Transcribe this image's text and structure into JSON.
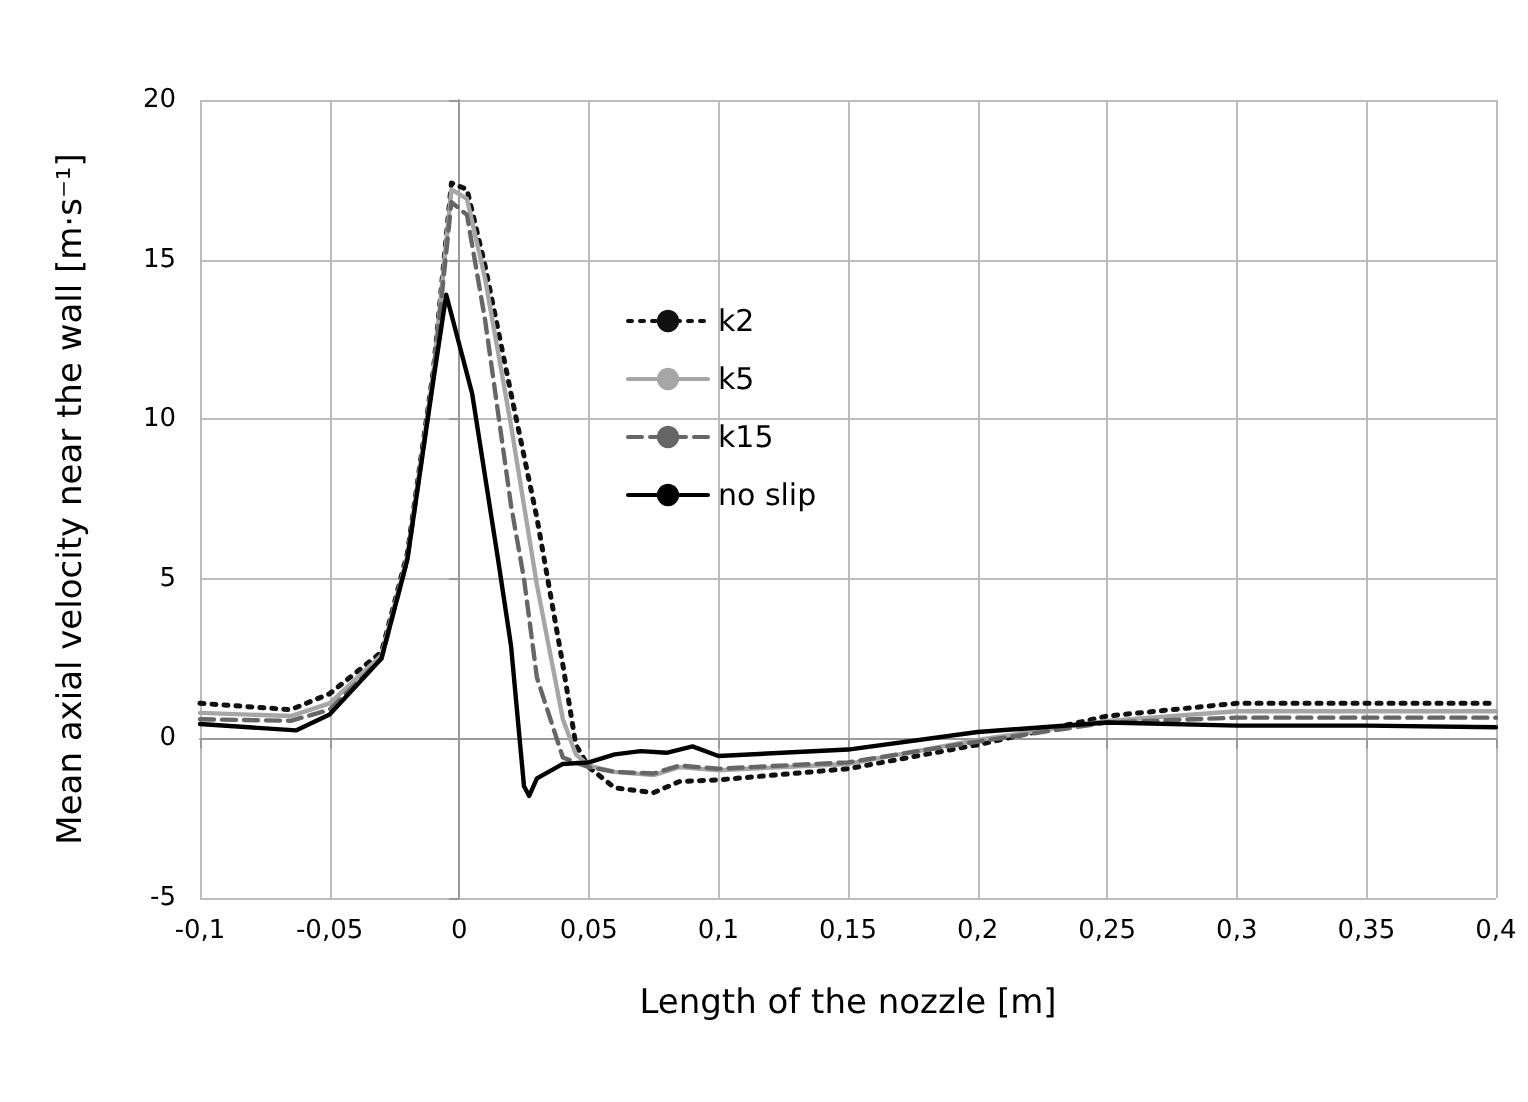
{
  "chart_data": {
    "type": "line",
    "xlabel": "Length of the nozzle [m]",
    "ylabel": "Mean axial velocity near the wall [m·s⁻¹]",
    "xlim": [
      -0.1,
      0.4
    ],
    "ylim": [
      -5,
      20
    ],
    "xticks": [
      {
        "value": -0.1,
        "label": "-0,1"
      },
      {
        "value": -0.05,
        "label": "-0,05"
      },
      {
        "value": 0,
        "label": "0"
      },
      {
        "value": 0.05,
        "label": "0,05"
      },
      {
        "value": 0.1,
        "label": "0,1"
      },
      {
        "value": 0.15,
        "label": "0,15"
      },
      {
        "value": 0.2,
        "label": "0,2"
      },
      {
        "value": 0.25,
        "label": "0,25"
      },
      {
        "value": 0.3,
        "label": "0,3"
      },
      {
        "value": 0.35,
        "label": "0,35"
      },
      {
        "value": 0.4,
        "label": "0,4"
      }
    ],
    "yticks": [
      -5,
      0,
      5,
      10,
      15,
      20
    ],
    "grid": true,
    "legend": "top",
    "marker": "none",
    "series": [
      {
        "name": "k2",
        "color": "#111111",
        "line_style": "dotted",
        "x": [
          -0.1,
          -0.065,
          -0.05,
          -0.03,
          -0.02,
          -0.01,
          -0.003,
          0.003,
          0.01,
          0.02,
          0.03,
          0.04,
          0.045,
          0.05,
          0.06,
          0.075,
          0.085,
          0.1,
          0.15,
          0.2,
          0.25,
          0.3,
          0.35,
          0.4
        ],
        "values": [
          1.1,
          0.9,
          1.4,
          2.7,
          5.8,
          11.5,
          17.4,
          17.2,
          14.8,
          10.8,
          6.9,
          2.3,
          -0.2,
          -0.9,
          -1.55,
          -1.7,
          -1.35,
          -1.3,
          -0.95,
          -0.2,
          0.7,
          1.1,
          1.1,
          1.1
        ]
      },
      {
        "name": "k5",
        "color": "#a6a6a6",
        "line_style": "solid",
        "x": [
          -0.1,
          -0.065,
          -0.05,
          -0.03,
          -0.02,
          -0.01,
          -0.003,
          0.003,
          0.01,
          0.02,
          0.03,
          0.04,
          0.045,
          0.05,
          0.06,
          0.075,
          0.085,
          0.1,
          0.15,
          0.2,
          0.25,
          0.3,
          0.35,
          0.4
        ],
        "values": [
          0.8,
          0.7,
          1.1,
          2.6,
          5.7,
          11.4,
          17.2,
          16.9,
          14.4,
          9.8,
          4.8,
          0.6,
          -0.5,
          -0.85,
          -1.05,
          -1.15,
          -0.9,
          -1.0,
          -0.8,
          -0.05,
          0.55,
          0.85,
          0.85,
          0.85
        ]
      },
      {
        "name": "k15",
        "color": "#666666",
        "line_style": "dashed",
        "x": [
          -0.1,
          -0.065,
          -0.05,
          -0.03,
          -0.02,
          -0.01,
          -0.003,
          0.003,
          0.01,
          0.02,
          0.025,
          0.03,
          0.04,
          0.05,
          0.06,
          0.075,
          0.085,
          0.1,
          0.15,
          0.2,
          0.25,
          0.3,
          0.35,
          0.4
        ],
        "values": [
          0.6,
          0.55,
          0.9,
          2.5,
          5.6,
          11.3,
          16.8,
          16.4,
          13.1,
          7.3,
          5.0,
          1.9,
          -0.6,
          -0.9,
          -1.05,
          -1.1,
          -0.85,
          -0.95,
          -0.75,
          -0.1,
          0.5,
          0.65,
          0.65,
          0.65
        ]
      },
      {
        "name": "no slip",
        "color": "#000000",
        "line_style": "solid",
        "x": [
          -0.1,
          -0.063,
          -0.05,
          -0.03,
          -0.02,
          -0.01,
          -0.005,
          0.005,
          0.015,
          0.02,
          0.025,
          0.027,
          0.03,
          0.04,
          0.05,
          0.06,
          0.07,
          0.08,
          0.09,
          0.1,
          0.15,
          0.2,
          0.25,
          0.3,
          0.35,
          0.4
        ],
        "values": [
          0.45,
          0.25,
          0.75,
          2.5,
          5.6,
          11.2,
          13.9,
          10.8,
          5.6,
          2.9,
          -1.5,
          -1.8,
          -1.25,
          -0.8,
          -0.75,
          -0.5,
          -0.4,
          -0.45,
          -0.25,
          -0.55,
          -0.35,
          0.2,
          0.5,
          0.4,
          0.4,
          0.35
        ]
      }
    ]
  }
}
